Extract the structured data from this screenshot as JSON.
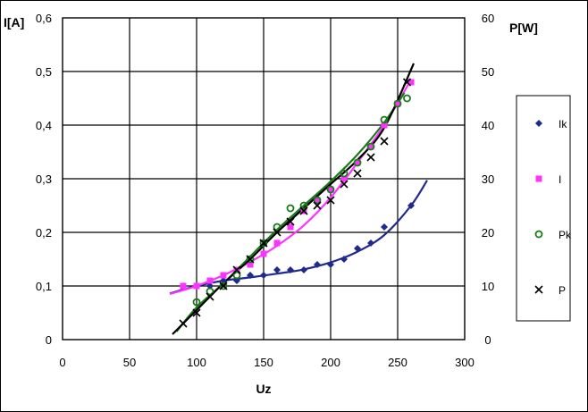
{
  "chart_data": {
    "type": "scatter",
    "title": "",
    "xlabel": "Uz",
    "ylabel_left": "I[A]",
    "ylabel_right": "P[W]",
    "xlim": [
      0,
      300
    ],
    "ylim_left": [
      0,
      0.6
    ],
    "ylim_right": [
      0,
      60
    ],
    "x_ticks": [
      "0",
      "50",
      "100",
      "150",
      "200",
      "250",
      "300"
    ],
    "y_left_ticks": [
      "0",
      "0,1",
      "0,2",
      "0,3",
      "0,4",
      "0,5",
      "0,6"
    ],
    "y_right_ticks": [
      "0",
      "10",
      "20",
      "30",
      "40",
      "50",
      "60"
    ],
    "grid": true,
    "legend_position": "right",
    "series": [
      {
        "name": "Ik",
        "axis": "left",
        "marker": "diamond",
        "color": "#1f2a8c",
        "x": [
          90,
          100,
          110,
          120,
          130,
          140,
          150,
          160,
          170,
          180,
          190,
          200,
          210,
          220,
          230,
          240,
          260
        ],
        "y": [
          0.1,
          0.1,
          0.1,
          0.11,
          0.11,
          0.12,
          0.12,
          0.13,
          0.13,
          0.13,
          0.14,
          0.14,
          0.15,
          0.17,
          0.18,
          0.21,
          0.25
        ],
        "trend": {
          "x": [
            80,
            100,
            120,
            140,
            160,
            180,
            200,
            220,
            240,
            260,
            272
          ],
          "y": [
            0.086,
            0.1,
            0.11,
            0.116,
            0.123,
            0.131,
            0.144,
            0.164,
            0.195,
            0.25,
            0.297
          ]
        }
      },
      {
        "name": "I",
        "axis": "left",
        "marker": "square",
        "color": "#ff33ff",
        "x": [
          90,
          100,
          110,
          120,
          130,
          140,
          150,
          160,
          170,
          180,
          190,
          200,
          210,
          220,
          230,
          240,
          250,
          260
        ],
        "y": [
          0.1,
          0.1,
          0.11,
          0.12,
          0.13,
          0.14,
          0.16,
          0.18,
          0.21,
          0.24,
          0.26,
          0.28,
          0.3,
          0.33,
          0.36,
          0.4,
          0.44,
          0.48
        ],
        "trend": {
          "x": [
            80,
            100,
            120,
            140,
            160,
            180,
            200,
            220,
            240,
            260
          ],
          "y": [
            0.085,
            0.1,
            0.12,
            0.145,
            0.175,
            0.213,
            0.265,
            0.33,
            0.4,
            0.485
          ]
        }
      },
      {
        "name": "Pk",
        "axis": "right",
        "marker": "circle",
        "color": "#1a7a1a",
        "x": [
          100,
          110,
          120,
          130,
          140,
          150,
          160,
          170,
          180,
          190,
          200,
          210,
          220,
          230,
          240,
          250,
          257
        ],
        "y": [
          7,
          9,
          10,
          12,
          15,
          18,
          21,
          24.5,
          25,
          26,
          28,
          31,
          33,
          36,
          41,
          44,
          45
        ],
        "trend": {
          "x": [
            85,
            100,
            120,
            140,
            160,
            180,
            200,
            220,
            240,
            255
          ],
          "y": [
            1.5,
            6,
            10.5,
            15.5,
            20.5,
            25,
            29.5,
            34.5,
            40.5,
            46
          ]
        }
      },
      {
        "name": "P",
        "axis": "right",
        "marker": "x",
        "color": "#000000",
        "x": [
          90,
          100,
          110,
          120,
          130,
          140,
          150,
          160,
          170,
          180,
          190,
          200,
          210,
          220,
          230,
          240,
          257
        ],
        "y": [
          3,
          5,
          8,
          10,
          13,
          15,
          18,
          20,
          22,
          24,
          25,
          26,
          29,
          31,
          34,
          37,
          48
        ],
        "trend": {
          "x": [
            82,
            100,
            120,
            140,
            160,
            180,
            200,
            220,
            240,
            262
          ],
          "y": [
            1,
            5.5,
            10.5,
            15,
            20,
            24.5,
            29,
            33.5,
            39.5,
            51.5
          ]
        }
      }
    ]
  }
}
